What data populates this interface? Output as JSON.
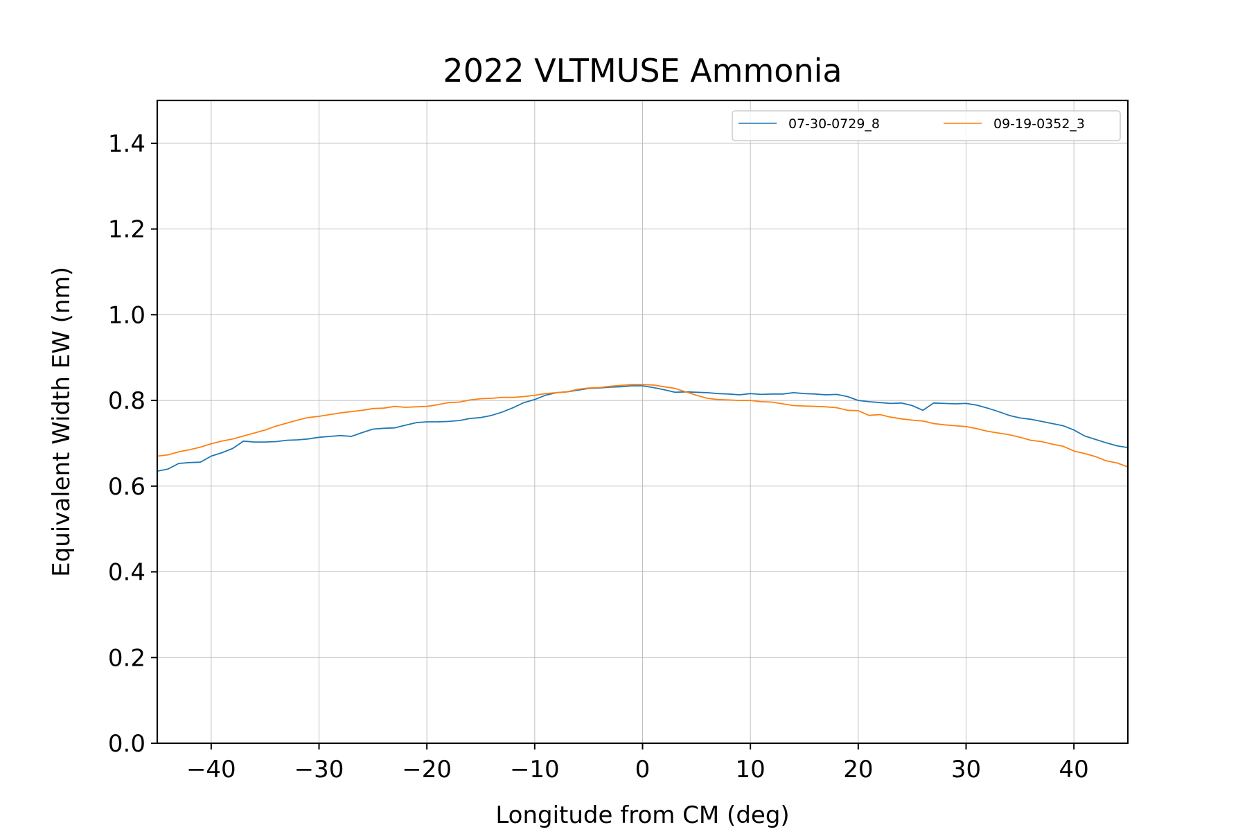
{
  "chart_data": {
    "type": "line",
    "title": "2022 VLTMUSE Ammonia",
    "xlabel": "Longitude from CM (deg)",
    "ylabel": "Equivalent Width EW (nm)",
    "xlim": [
      -45,
      45
    ],
    "ylim": [
      0.0,
      1.5
    ],
    "xticks": [
      -40,
      -30,
      -20,
      -10,
      0,
      10,
      20,
      30,
      40
    ],
    "xtick_labels": [
      "−40",
      "−30",
      "−20",
      "−10",
      "0",
      "10",
      "20",
      "30",
      "40"
    ],
    "yticks": [
      0.0,
      0.2,
      0.4,
      0.6,
      0.8,
      1.0,
      1.2,
      1.4
    ],
    "ytick_labels": [
      "0.0",
      "0.2",
      "0.4",
      "0.6",
      "0.8",
      "1.0",
      "1.2",
      "1.4"
    ],
    "grid": true,
    "legend": {
      "placement": "top-right",
      "columns": 2
    },
    "series": [
      {
        "name": "07-30-0729_8",
        "color": "#1f77b4",
        "x": [
          -45,
          -44,
          -43,
          -42,
          -41,
          -40,
          -39,
          -38,
          -37,
          -36,
          -35,
          -34,
          -33,
          -32,
          -31,
          -30,
          -29,
          -28,
          -27,
          -26,
          -25,
          -24,
          -23,
          -22,
          -21,
          -20,
          -19,
          -18,
          -17,
          -16,
          -15,
          -14,
          -13,
          -12,
          -11,
          -10,
          -9,
          -8,
          -7,
          -6,
          -5,
          -4,
          -3,
          -2,
          -1,
          0,
          1,
          2,
          3,
          4,
          5,
          6,
          7,
          8,
          9,
          10,
          11,
          12,
          13,
          14,
          15,
          16,
          17,
          18,
          19,
          20,
          21,
          22,
          23,
          24,
          25,
          26,
          27,
          28,
          29,
          30,
          31,
          32,
          33,
          34,
          35,
          36,
          37,
          38,
          39,
          40,
          41,
          42,
          43,
          44,
          45
        ],
        "y": [
          0.635,
          0.64,
          0.653,
          0.655,
          0.656,
          0.67,
          0.678,
          0.688,
          0.705,
          0.703,
          0.703,
          0.704,
          0.707,
          0.708,
          0.71,
          0.714,
          0.716,
          0.718,
          0.716,
          0.725,
          0.733,
          0.735,
          0.736,
          0.742,
          0.748,
          0.75,
          0.75,
          0.751,
          0.753,
          0.758,
          0.76,
          0.765,
          0.773,
          0.783,
          0.795,
          0.802,
          0.812,
          0.818,
          0.82,
          0.824,
          0.828,
          0.829,
          0.831,
          0.832,
          0.834,
          0.834,
          0.83,
          0.825,
          0.819,
          0.82,
          0.819,
          0.818,
          0.816,
          0.815,
          0.813,
          0.816,
          0.814,
          0.815,
          0.815,
          0.818,
          0.816,
          0.815,
          0.813,
          0.814,
          0.809,
          0.8,
          0.797,
          0.795,
          0.793,
          0.794,
          0.788,
          0.777,
          0.794,
          0.793,
          0.792,
          0.793,
          0.789,
          0.782,
          0.774,
          0.765,
          0.759,
          0.756,
          0.751,
          0.746,
          0.741,
          0.731,
          0.717,
          0.709,
          0.701,
          0.694,
          0.69
        ]
      },
      {
        "name": "09-19-0352_3",
        "color": "#ff7f0e",
        "x": [
          -45,
          -44,
          -43,
          -42,
          -41,
          -40,
          -39,
          -38,
          -37,
          -36,
          -35,
          -34,
          -33,
          -32,
          -31,
          -30,
          -29,
          -28,
          -27,
          -26,
          -25,
          -24,
          -23,
          -22,
          -21,
          -20,
          -19,
          -18,
          -17,
          -16,
          -15,
          -14,
          -13,
          -12,
          -11,
          -10,
          -9,
          -8,
          -7,
          -6,
          -5,
          -4,
          -3,
          -2,
          -1,
          0,
          1,
          2,
          3,
          4,
          5,
          6,
          7,
          8,
          9,
          10,
          11,
          12,
          13,
          14,
          15,
          16,
          17,
          18,
          19,
          20,
          21,
          22,
          23,
          24,
          25,
          26,
          27,
          28,
          29,
          30,
          31,
          32,
          33,
          34,
          35,
          36,
          37,
          38,
          39,
          40,
          41,
          42,
          43,
          44,
          45
        ],
        "y": [
          0.67,
          0.673,
          0.68,
          0.685,
          0.691,
          0.699,
          0.705,
          0.71,
          0.717,
          0.724,
          0.731,
          0.74,
          0.747,
          0.754,
          0.76,
          0.763,
          0.767,
          0.771,
          0.774,
          0.777,
          0.781,
          0.782,
          0.786,
          0.784,
          0.785,
          0.786,
          0.79,
          0.795,
          0.796,
          0.801,
          0.804,
          0.805,
          0.807,
          0.807,
          0.809,
          0.812,
          0.816,
          0.818,
          0.82,
          0.826,
          0.829,
          0.83,
          0.833,
          0.835,
          0.837,
          0.837,
          0.836,
          0.832,
          0.828,
          0.82,
          0.812,
          0.805,
          0.802,
          0.801,
          0.8,
          0.8,
          0.797,
          0.796,
          0.792,
          0.788,
          0.787,
          0.786,
          0.785,
          0.783,
          0.777,
          0.776,
          0.765,
          0.767,
          0.761,
          0.757,
          0.754,
          0.752,
          0.746,
          0.743,
          0.741,
          0.739,
          0.734,
          0.728,
          0.724,
          0.72,
          0.714,
          0.707,
          0.704,
          0.698,
          0.693,
          0.682,
          0.676,
          0.669,
          0.659,
          0.654,
          0.645
        ]
      }
    ]
  }
}
